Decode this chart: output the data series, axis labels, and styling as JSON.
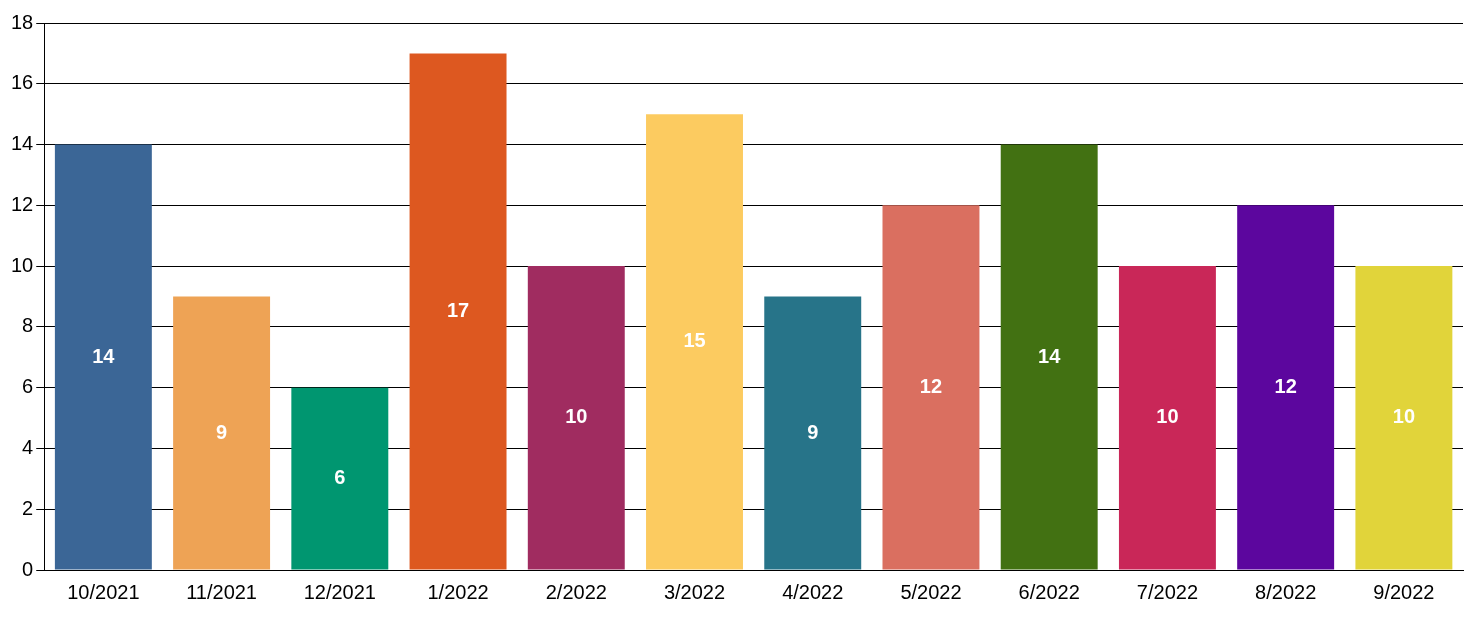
{
  "chart_data": {
    "type": "bar",
    "categories": [
      "10/2021",
      "11/2021",
      "12/2021",
      "1/2022",
      "2/2022",
      "3/2022",
      "4/2022",
      "5/2022",
      "6/2022",
      "7/2022",
      "8/2022",
      "9/2022"
    ],
    "values": [
      14,
      9,
      6,
      17,
      10,
      15,
      9,
      12,
      14,
      10,
      12,
      10
    ],
    "colors": [
      "#3b6696",
      "#eea355",
      "#009670",
      "#dd5820",
      "#a02c60",
      "#fccb60",
      "#277489",
      "#da6f60",
      "#427112",
      "#c92758",
      "#5c069e",
      "#e1d43a"
    ],
    "ylim": [
      0,
      18
    ],
    "yticks": [
      0,
      2,
      4,
      6,
      8,
      10,
      12,
      14,
      16,
      18
    ],
    "grid": "y",
    "data_labels": true,
    "legend": false
  }
}
